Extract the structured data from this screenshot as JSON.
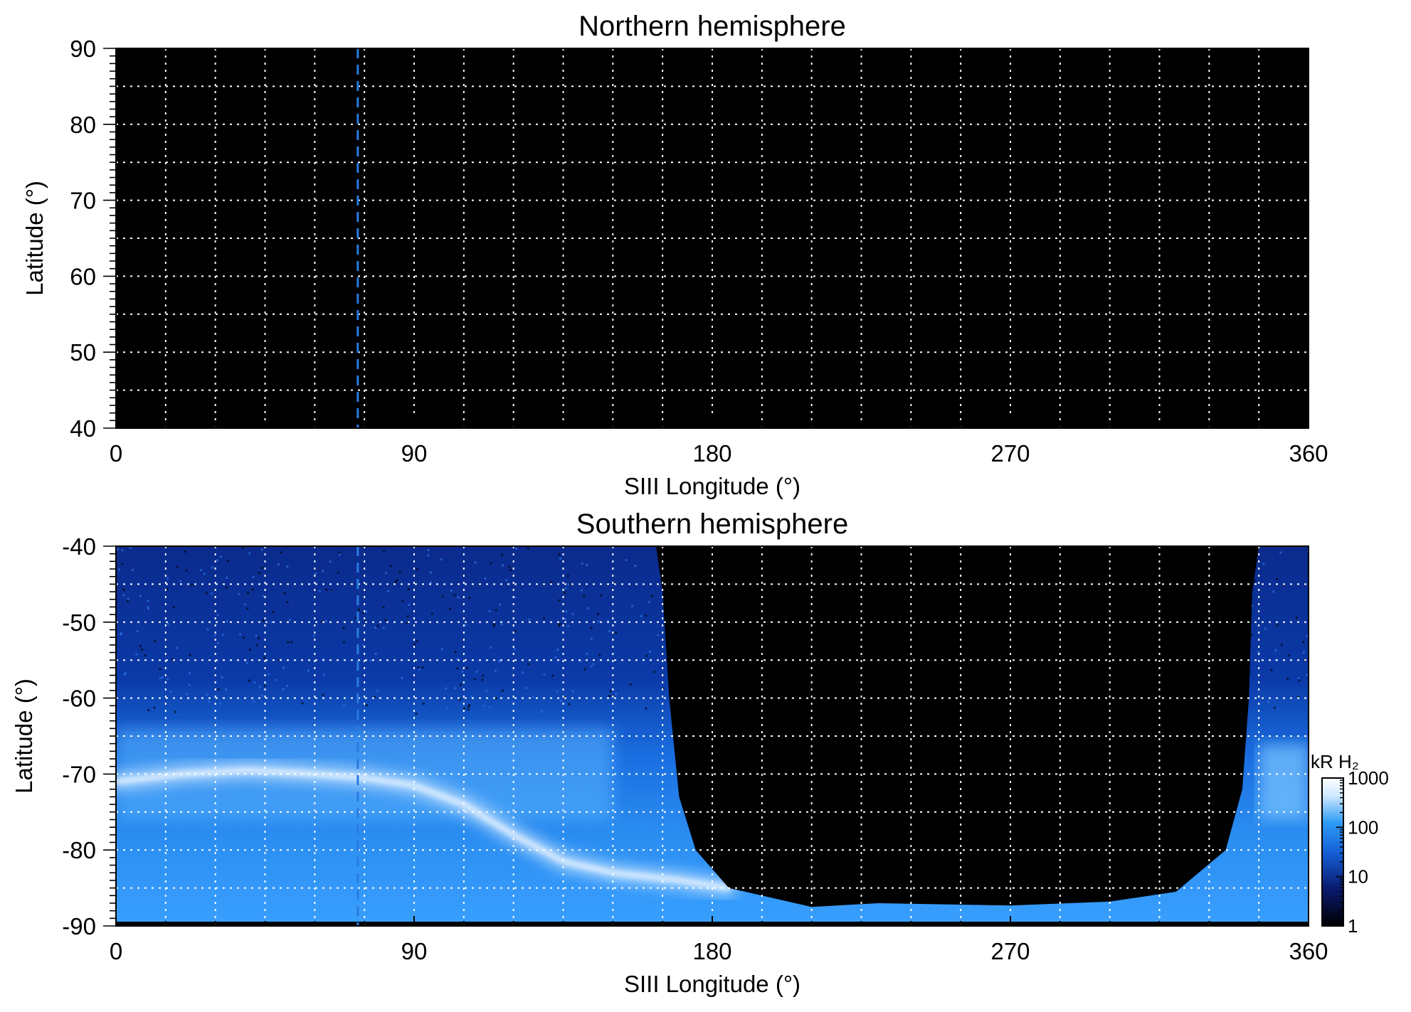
{
  "chart_data": [
    {
      "type": "heatmap",
      "title": "Northern hemisphere",
      "xlabel": "SIII Longitude (°)",
      "ylabel": "Latitude (°)",
      "xlim": [
        0,
        360
      ],
      "ylim": [
        40,
        90
      ],
      "xticks": [
        "0",
        "90",
        "180",
        "270",
        "360"
      ],
      "yticks": [
        "90",
        "80",
        "70",
        "60",
        "50",
        "40"
      ],
      "grid": true,
      "grid_step_longitude": 15,
      "grid_step_latitude": 5,
      "dashed_meridian_longitude": 73,
      "dashed_meridian_color": "#2a7be0",
      "background_color": "#000000",
      "emission": "none visible"
    },
    {
      "type": "heatmap",
      "title": "Southern hemisphere",
      "xlabel": "SIII Longitude (°)",
      "ylabel": "Latitude (°)",
      "xlim": [
        0,
        360
      ],
      "ylim": [
        -90,
        -40
      ],
      "xticks": [
        "0",
        "90",
        "180",
        "270",
        "360"
      ],
      "yticks": [
        "-40",
        "-50",
        "-60",
        "-70",
        "-80",
        "-90"
      ],
      "grid": true,
      "grid_step_longitude": 15,
      "grid_step_latitude": 5,
      "dashed_meridian_longitude": 73,
      "dashed_meridian_color": "#2a7be0",
      "main_oval_latitude": [
        [
          0,
          -71
        ],
        [
          20,
          -70
        ],
        [
          40,
          -69.5
        ],
        [
          60,
          -70
        ],
        [
          75,
          -70.5
        ],
        [
          90,
          -71.5
        ],
        [
          105,
          -74
        ],
        [
          120,
          -78
        ],
        [
          135,
          -81.5
        ],
        [
          150,
          -83
        ],
        [
          170,
          -84
        ],
        [
          185,
          -85
        ]
      ],
      "east_oval_latitude": [
        [
          343,
          -72
        ],
        [
          360,
          -72
        ]
      ],
      "coverage_edge_west": [
        [
          150,
          -40
        ],
        [
          163,
          -40
        ],
        [
          165,
          -46
        ],
        [
          167,
          -60
        ],
        [
          170,
          -73
        ],
        [
          175,
          -80
        ],
        [
          185,
          -85
        ],
        [
          200,
          -86.5
        ],
        [
          210,
          -87.5
        ],
        [
          230,
          -87
        ],
        [
          270,
          -87.3
        ],
        [
          300,
          -86.8
        ],
        [
          320,
          -85.5
        ],
        [
          335,
          -80
        ],
        [
          340,
          -72
        ],
        [
          342,
          -60
        ],
        [
          343,
          -46
        ],
        [
          345,
          -40
        ]
      ],
      "colorbar": {
        "label": "kR H₂",
        "scale": "log",
        "range": [
          1,
          1000
        ],
        "ticks": [
          "1000",
          "100",
          "10",
          "1"
        ],
        "colors": [
          "#000000",
          "#0a1a6e",
          "#1560d8",
          "#2f9cf5",
          "#cfe8ff",
          "#ffffff"
        ]
      }
    }
  ]
}
